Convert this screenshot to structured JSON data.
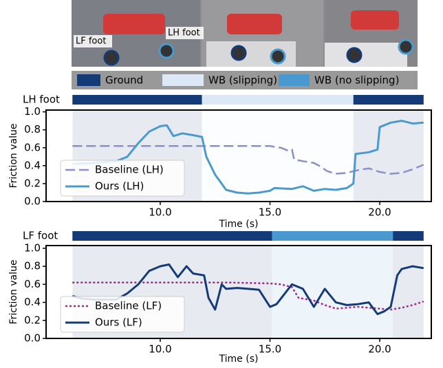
{
  "photo_labels": {
    "left": "LF foot",
    "right": "LH foot"
  },
  "phase_legend": [
    {
      "name": "Ground",
      "color": "#153a78"
    },
    {
      "name": "WB (slipping)",
      "color": "#dce8f5"
    },
    {
      "name": "WB (no slipping)",
      "color": "#4a98d0"
    }
  ],
  "chart_data": [
    {
      "type": "line",
      "foot_label": "LH foot",
      "foot_color": "#4a9ad0",
      "xlabel": "Time (s)",
      "ylabel": "Friction value",
      "xlim": [
        4.8,
        22.35
      ],
      "ylim": [
        0,
        1.02
      ],
      "xticks": [
        {
          "value": 10,
          "label": "10.0"
        },
        {
          "value": 15,
          "label": "15.0"
        },
        {
          "value": 20,
          "label": "20.0"
        }
      ],
      "yticks": [
        {
          "value": 0,
          "label": "0.0"
        },
        {
          "value": 0.2,
          "label": "0.2"
        },
        {
          "value": 0.4,
          "label": "0.4"
        },
        {
          "value": 0.6,
          "label": "0.6"
        },
        {
          "value": 0.8,
          "label": "0.8"
        },
        {
          "value": 1,
          "label": "1.0"
        }
      ],
      "phases": [
        {
          "start": 6,
          "end": 11.9,
          "color": "#153a78"
        },
        {
          "start": 11.9,
          "end": 18.8,
          "color": "#dce8f5"
        },
        {
          "start": 18.8,
          "end": 22,
          "color": "#153a78"
        }
      ],
      "legend": "lower left",
      "series": [
        {
          "name": "Baseline (LH)",
          "color": "#8a8fcc",
          "dash": "dashed",
          "x": [
            6,
            15,
            15.2,
            15.5,
            15.8,
            16,
            16.1,
            16.5,
            17,
            17.3,
            17.6,
            18,
            18.5,
            19,
            19.5,
            20,
            20.5,
            21,
            21.5,
            22
          ],
          "values": [
            0.62,
            0.62,
            0.61,
            0.6,
            0.57,
            0.58,
            0.47,
            0.45,
            0.43,
            0.39,
            0.34,
            0.31,
            0.32,
            0.35,
            0.37,
            0.33,
            0.31,
            0.32,
            0.36,
            0.41
          ]
        },
        {
          "name": "Ours (LH)",
          "color": "#4a9ad0",
          "dash": "solid",
          "x": [
            6,
            7,
            8,
            8.5,
            9,
            9.5,
            10,
            10.3,
            10.6,
            11,
            11.5,
            11.9,
            12.1,
            12.5,
            13,
            13.5,
            14,
            14.5,
            15,
            15.2,
            16,
            16.5,
            17,
            17.5,
            18,
            18.5,
            18.8,
            18.9,
            19.5,
            19.9,
            20,
            20.5,
            21,
            21.5,
            22
          ],
          "values": [
            0.42,
            0.43,
            0.45,
            0.5,
            0.65,
            0.78,
            0.84,
            0.85,
            0.73,
            0.76,
            0.74,
            0.72,
            0.5,
            0.3,
            0.13,
            0.1,
            0.09,
            0.1,
            0.12,
            0.15,
            0.14,
            0.17,
            0.12,
            0.14,
            0.13,
            0.15,
            0.2,
            0.53,
            0.55,
            0.58,
            0.83,
            0.88,
            0.9,
            0.87,
            0.88
          ]
        }
      ]
    },
    {
      "type": "line",
      "foot_label": "LF foot",
      "foot_color": "#153a78",
      "xlabel": "Time (s)",
      "ylabel": "Friction value",
      "xlim": [
        4.8,
        22.35
      ],
      "ylim": [
        0,
        1.03
      ],
      "xticks": [
        {
          "value": 10,
          "label": "10.0"
        },
        {
          "value": 15,
          "label": "15.0"
        },
        {
          "value": 20,
          "label": "20.0"
        }
      ],
      "yticks": [
        {
          "value": 0,
          "label": "0.0"
        },
        {
          "value": 0.2,
          "label": "0.2"
        },
        {
          "value": 0.4,
          "label": "0.4"
        },
        {
          "value": 0.6,
          "label": "0.6"
        },
        {
          "value": 0.8,
          "label": "0.8"
        },
        {
          "value": 1,
          "label": "1.0"
        }
      ],
      "phases": [
        {
          "start": 6,
          "end": 15.1,
          "color": "#153a78"
        },
        {
          "start": 15.1,
          "end": 20.6,
          "color": "#4a98d0"
        },
        {
          "start": 20.6,
          "end": 22,
          "color": "#153a78"
        }
      ],
      "legend": "lower left",
      "series": [
        {
          "name": "Baseline (LF)",
          "color": "#a0288e",
          "dash": "dotted",
          "x": [
            6,
            10,
            13,
            15,
            15.5,
            16,
            16.3,
            17,
            17.5,
            18,
            18.5,
            19,
            19.5,
            20,
            20.5,
            21,
            21.5,
            22
          ],
          "values": [
            0.62,
            0.62,
            0.62,
            0.61,
            0.6,
            0.57,
            0.45,
            0.42,
            0.37,
            0.33,
            0.34,
            0.35,
            0.34,
            0.33,
            0.32,
            0.34,
            0.37,
            0.41
          ]
        },
        {
          "name": "Ours (LF)",
          "color": "#153a78",
          "dash": "solid",
          "x": [
            6,
            6.5,
            7,
            8,
            8.5,
            9,
            9.5,
            10,
            10.4,
            10.8,
            11.2,
            11.5,
            12,
            12.2,
            12.5,
            12.8,
            13,
            13.5,
            14,
            14.5,
            15,
            15.3,
            16,
            16.5,
            17,
            17.5,
            18,
            18.5,
            19,
            19.5,
            19.9,
            20.2,
            20.5,
            20.8,
            21,
            21.5,
            22
          ],
          "values": [
            0.47,
            0.44,
            0.43,
            0.43,
            0.5,
            0.6,
            0.75,
            0.8,
            0.82,
            0.68,
            0.8,
            0.72,
            0.7,
            0.45,
            0.32,
            0.6,
            0.55,
            0.56,
            0.55,
            0.54,
            0.35,
            0.38,
            0.6,
            0.55,
            0.35,
            0.55,
            0.4,
            0.37,
            0.38,
            0.4,
            0.27,
            0.3,
            0.35,
            0.7,
            0.77,
            0.8,
            0.78
          ]
        }
      ]
    }
  ]
}
